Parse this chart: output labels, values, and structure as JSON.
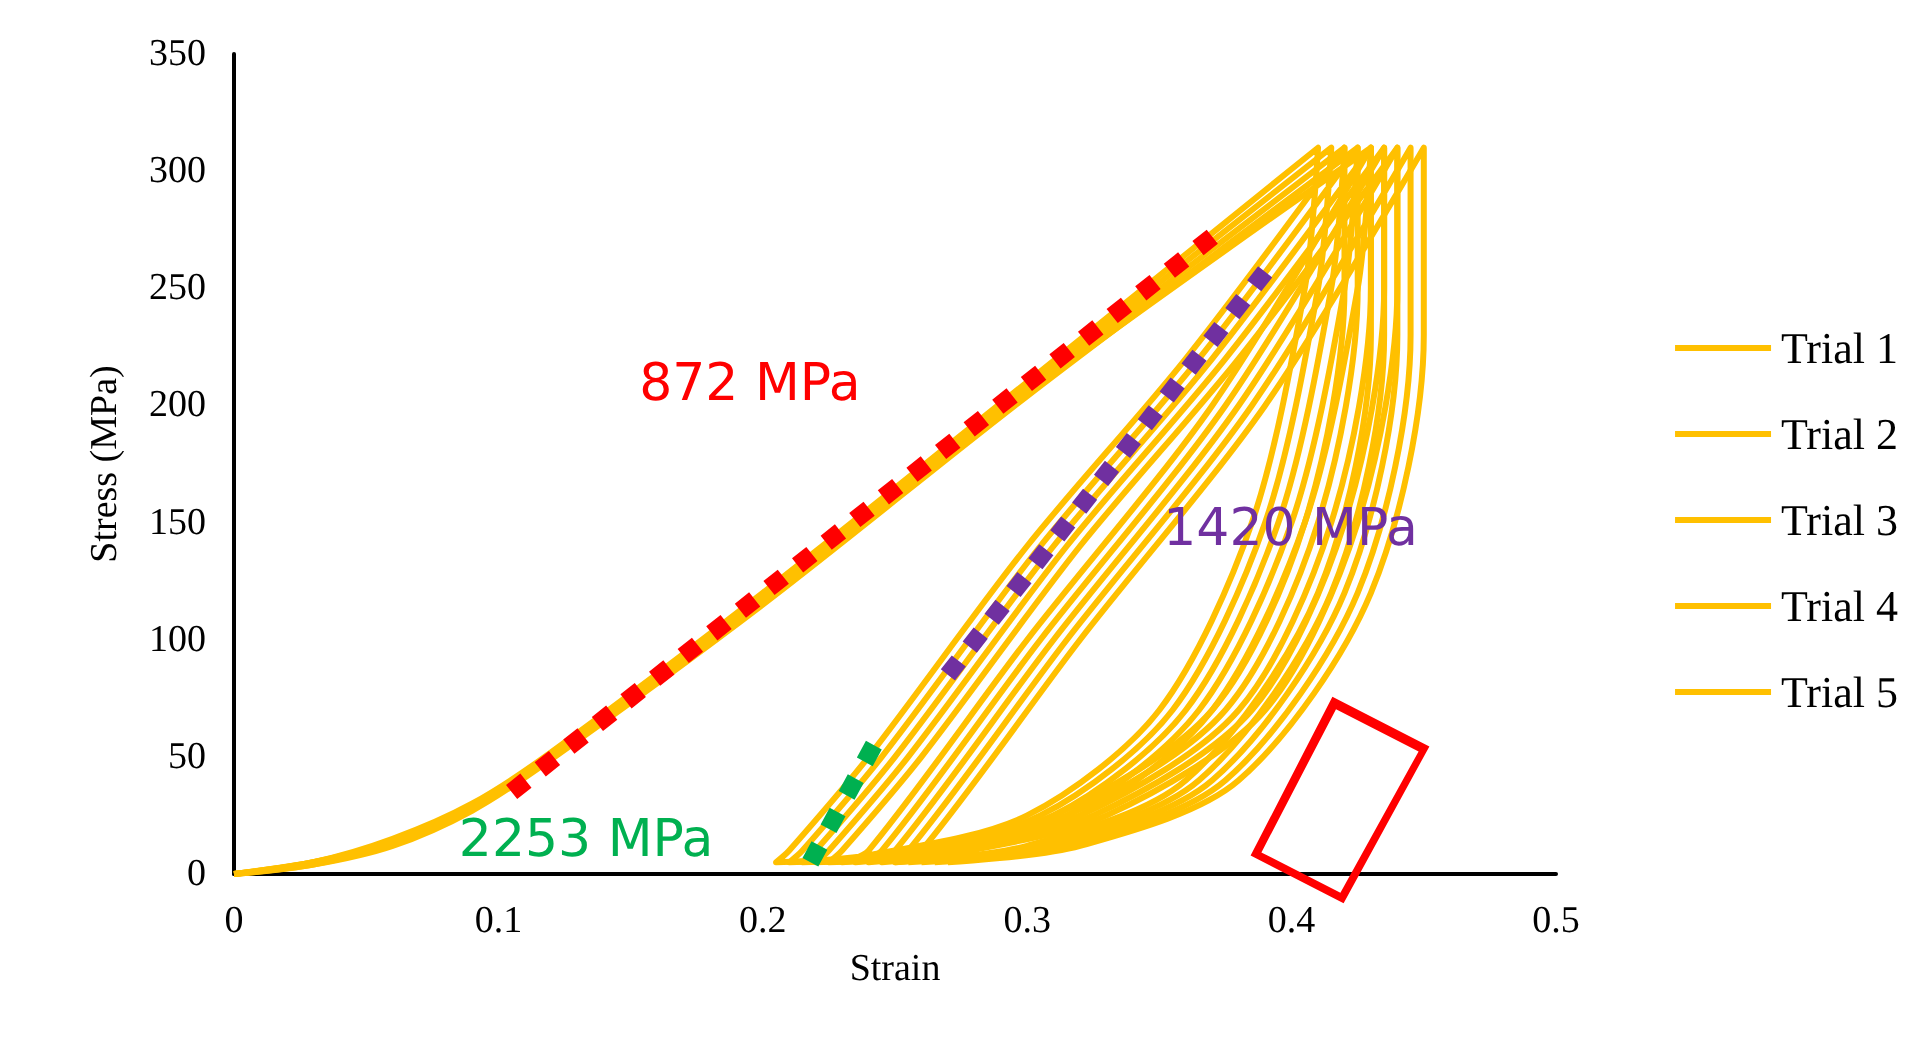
{
  "chart_data": {
    "type": "line",
    "xlabel": "Strain",
    "ylabel": "Stress (MPa)",
    "xlim": [
      0,
      0.5
    ],
    "ylim": [
      0,
      350
    ],
    "xticks": [
      0,
      0.1,
      0.2,
      0.3,
      0.4,
      0.5
    ],
    "yticks": [
      0,
      50,
      100,
      150,
      200,
      250,
      300,
      350
    ],
    "grid": false,
    "legend": "right",
    "annotations": [
      "872 MPa",
      "1420 MPa",
      "2253 MPa"
    ],
    "series": [
      {
        "name": "Trial 1",
        "color": "#ffc000",
        "x": [
          0,
          0.03,
          0.06,
          0.09,
          0.12,
          0.2,
          0.3,
          0.41,
          0.405,
          0.385,
          0.35,
          0.3,
          0.24,
          0.205,
          0.21,
          0.24,
          0.3,
          0.36,
          0.42,
          0.42,
          0.405,
          0.37,
          0.31,
          0.25,
          0.23,
          0.24,
          0.3,
          0.37,
          0.43,
          0.43,
          0.41,
          0.36,
          0.3,
          0.25
        ],
        "values": [
          0,
          5,
          15,
          30,
          52,
          120,
          210,
          310,
          250,
          150,
          70,
          25,
          8,
          5,
          10,
          50,
          140,
          220,
          310,
          250,
          150,
          70,
          25,
          8,
          5,
          10,
          100,
          200,
          310,
          230,
          120,
          40,
          12,
          5
        ]
      },
      {
        "name": "Trial 2",
        "color": "#ffc000",
        "x": [
          0,
          0.03,
          0.06,
          0.09,
          0.12,
          0.2,
          0.3,
          0.415,
          0.41,
          0.39,
          0.355,
          0.305,
          0.245,
          0.21,
          0.215,
          0.245,
          0.305,
          0.365,
          0.425,
          0.425,
          0.41,
          0.375,
          0.315,
          0.255,
          0.235,
          0.245,
          0.305,
          0.375,
          0.435,
          0.435,
          0.415,
          0.365,
          0.305,
          0.255
        ],
        "values": [
          0,
          4,
          13,
          28,
          50,
          118,
          208,
          310,
          250,
          150,
          70,
          25,
          8,
          5,
          10,
          50,
          140,
          220,
          310,
          250,
          150,
          70,
          25,
          8,
          5,
          10,
          100,
          200,
          310,
          230,
          120,
          40,
          12,
          5
        ]
      },
      {
        "name": "Trial 3",
        "color": "#ffc000",
        "x": [
          0,
          0.03,
          0.06,
          0.09,
          0.12,
          0.2,
          0.3,
          0.42,
          0.415,
          0.395,
          0.36,
          0.31,
          0.25,
          0.215,
          0.22,
          0.25,
          0.31,
          0.37,
          0.43,
          0.43,
          0.415,
          0.38,
          0.32,
          0.26,
          0.24,
          0.25,
          0.31,
          0.38,
          0.44,
          0.44,
          0.42,
          0.37,
          0.31,
          0.26
        ],
        "values": [
          0,
          5,
          14,
          29,
          51,
          117,
          206,
          310,
          250,
          150,
          70,
          25,
          8,
          5,
          10,
          50,
          140,
          220,
          310,
          250,
          150,
          70,
          25,
          8,
          5,
          10,
          100,
          200,
          310,
          230,
          120,
          40,
          12,
          5
        ]
      },
      {
        "name": "Trial 4",
        "color": "#ffc000",
        "x": [
          0,
          0.03,
          0.06,
          0.09,
          0.12,
          0.2,
          0.3,
          0.425,
          0.42,
          0.4,
          0.365,
          0.315,
          0.255,
          0.22,
          0.225,
          0.255,
          0.315,
          0.375,
          0.435,
          0.435,
          0.42,
          0.385,
          0.325,
          0.265,
          0.245,
          0.255,
          0.315,
          0.385,
          0.445,
          0.445,
          0.425,
          0.375,
          0.315,
          0.265
        ],
        "values": [
          0,
          4,
          12,
          27,
          49,
          115,
          204,
          310,
          250,
          150,
          70,
          25,
          8,
          5,
          10,
          50,
          140,
          220,
          310,
          250,
          150,
          70,
          25,
          8,
          5,
          10,
          100,
          200,
          310,
          230,
          120,
          40,
          12,
          5
        ]
      },
      {
        "name": "Trial 5",
        "color": "#ffc000",
        "x": [
          0,
          0.03,
          0.06,
          0.09,
          0.12,
          0.2,
          0.3,
          0.43,
          0.425,
          0.405,
          0.37,
          0.32,
          0.26,
          0.225,
          0.23,
          0.26,
          0.32,
          0.38,
          0.44,
          0.44,
          0.425,
          0.39,
          0.33,
          0.27,
          0.25,
          0.26,
          0.32,
          0.39,
          0.45,
          0.45,
          0.43,
          0.38,
          0.32,
          0.27
        ],
        "values": [
          0,
          5,
          13,
          28,
          50,
          116,
          205,
          310,
          250,
          150,
          70,
          25,
          8,
          5,
          10,
          50,
          140,
          220,
          310,
          250,
          150,
          70,
          25,
          8,
          5,
          10,
          100,
          200,
          310,
          230,
          120,
          40,
          12,
          5
        ]
      },
      {
        "type": "line",
        "color": "#ff0000",
        "line_style": "dotted",
        "x": [
          0.105,
          0.37
        ],
        "values": [
          35,
          272
        ]
      },
      {
        "type": "line",
        "color": "#7030a0",
        "line_style": "dotted",
        "x": [
          0.27,
          0.39
        ],
        "values": [
          85,
          257
        ]
      },
      {
        "type": "line",
        "color": "#00b050",
        "line_style": "dotted",
        "x": [
          0.218,
          0.242
        ],
        "values": [
          5,
          55
        ]
      }
    ]
  }
}
